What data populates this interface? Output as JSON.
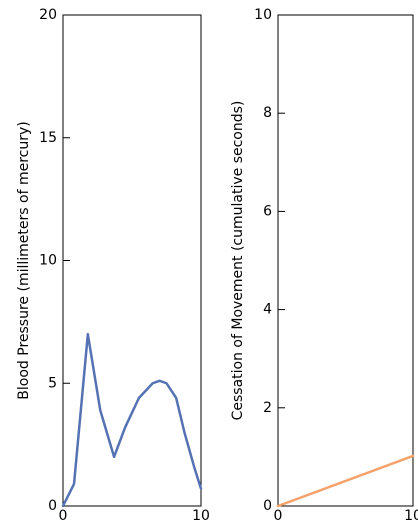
{
  "chart_data": [
    {
      "type": "line",
      "ylabel": "Blood Pressure (millimeters of mercury)",
      "xlabel": "",
      "xlim": [
        0,
        10
      ],
      "ylim": [
        0,
        20
      ],
      "xticks": [
        0,
        10
      ],
      "yticks": [
        0,
        5,
        10,
        15,
        20
      ],
      "grid": false,
      "series": [
        {
          "color": "#5572b3",
          "x": [
            0,
            0.8,
            1.8,
            2.7,
            3.7,
            4.5,
            5.5,
            6.5,
            7.0,
            7.5,
            8.2,
            8.8,
            9.5,
            10
          ],
          "y": [
            0,
            0.9,
            7.0,
            3.9,
            2.0,
            3.2,
            4.4,
            5.0,
            5.1,
            5.0,
            4.4,
            3.0,
            1.6,
            0.7
          ]
        }
      ]
    },
    {
      "type": "line",
      "ylabel": "Cessation of Movement (cumulative seconds)",
      "xlabel": "",
      "xlim": [
        0,
        10
      ],
      "ylim": [
        0,
        10
      ],
      "xticks": [
        0,
        10
      ],
      "yticks": [
        0,
        2,
        4,
        6,
        8,
        10
      ],
      "grid": false,
      "series": [
        {
          "color": "#f4a26a",
          "x": [
            0,
            10
          ],
          "y": [
            0,
            1.02
          ]
        }
      ]
    }
  ]
}
